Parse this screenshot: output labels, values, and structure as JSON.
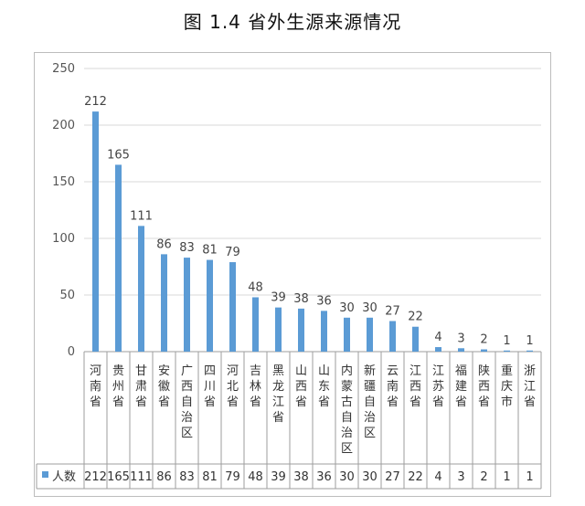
{
  "caption": "图 1.4  省外生源来源情况",
  "chart_data": {
    "type": "bar",
    "title": "",
    "xlabel": "",
    "ylabel": "",
    "ylim": [
      0,
      250
    ],
    "yticks": [
      0,
      50,
      100,
      150,
      200,
      250
    ],
    "grid": true,
    "legend_placement": "bottom-left (data table)",
    "bar_color": "#5b9bd5",
    "categories": [
      "河南省",
      "贵州省",
      "甘肃省",
      "安徽省",
      "广西自治区",
      "四川省",
      "河北省",
      "吉林省",
      "黑龙江省",
      "山西省",
      "山东省",
      "内蒙古自治区",
      "新疆自治区",
      "云南省",
      "江西省",
      "江苏省",
      "福建省",
      "陕西省",
      "重庆市",
      "浙江省"
    ],
    "series": [
      {
        "name": "人数",
        "values": [
          212,
          165,
          111,
          86,
          83,
          81,
          79,
          48,
          39,
          38,
          36,
          30,
          30,
          27,
          22,
          4,
          3,
          2,
          1,
          1
        ]
      }
    ]
  }
}
